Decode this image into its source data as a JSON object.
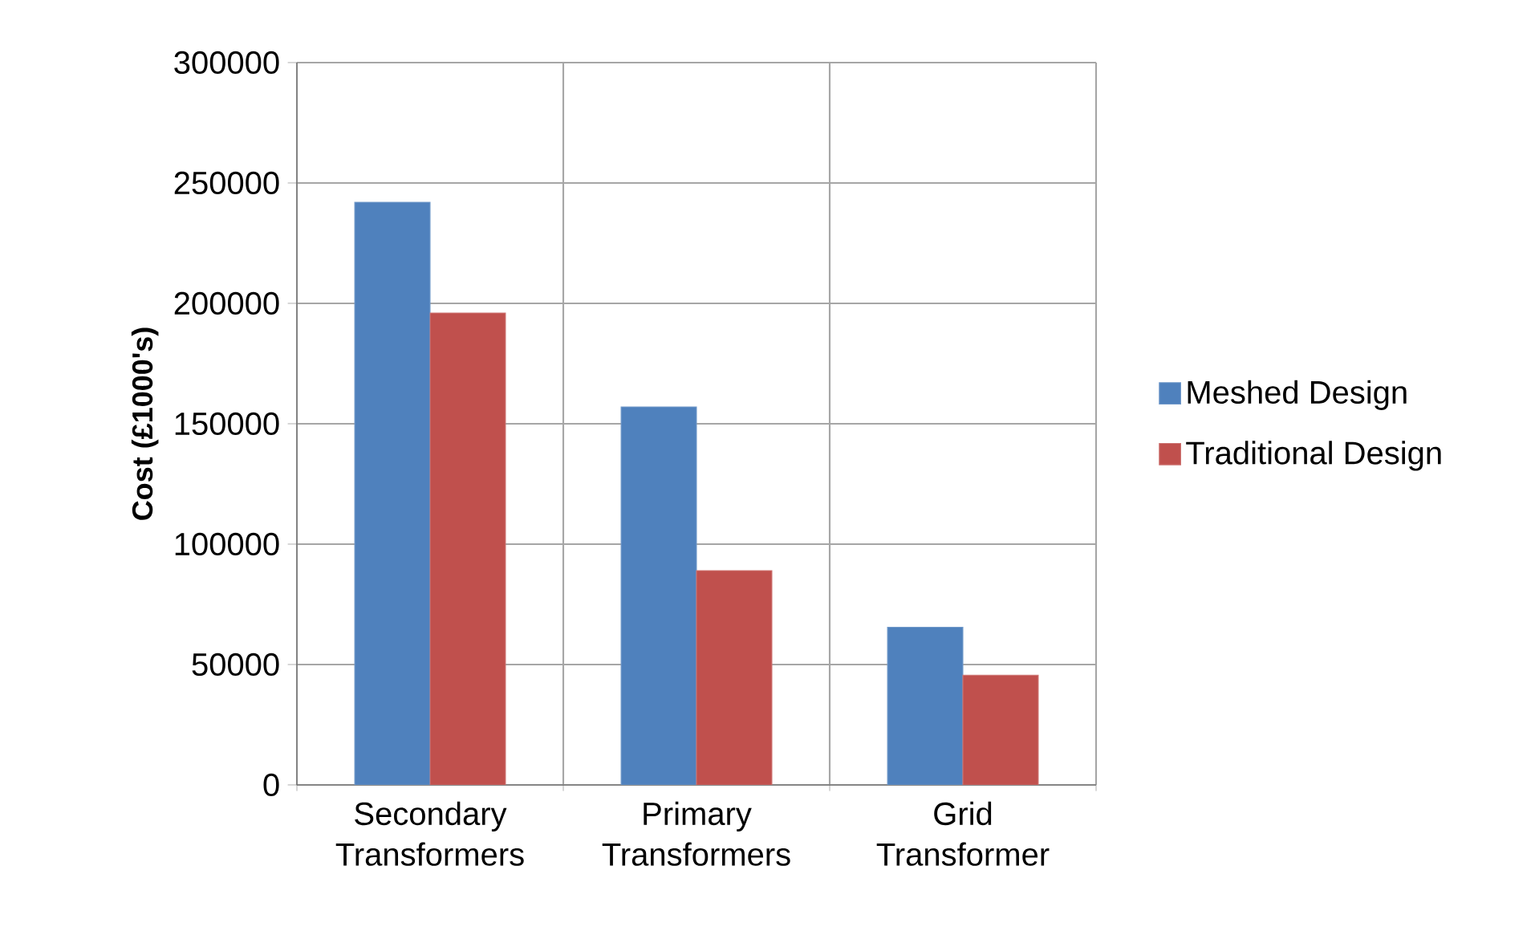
{
  "chart_data": {
    "type": "bar",
    "ylabel": "Cost (£1000's)",
    "categories": [
      "Secondary Transformers",
      "Primary Transformers",
      "Grid Transformer"
    ],
    "series": [
      {
        "name": "Meshed Design",
        "color": "#4f81bd",
        "values": [
          242000,
          157000,
          65500
        ]
      },
      {
        "name": "Traditional Design",
        "color": "#c0504d",
        "values": [
          196000,
          89000,
          45600
        ]
      }
    ],
    "ylim": [
      0,
      300000
    ],
    "yticks": [
      0,
      50000,
      100000,
      150000,
      200000,
      250000,
      300000
    ],
    "grid": true,
    "legend": "right"
  }
}
